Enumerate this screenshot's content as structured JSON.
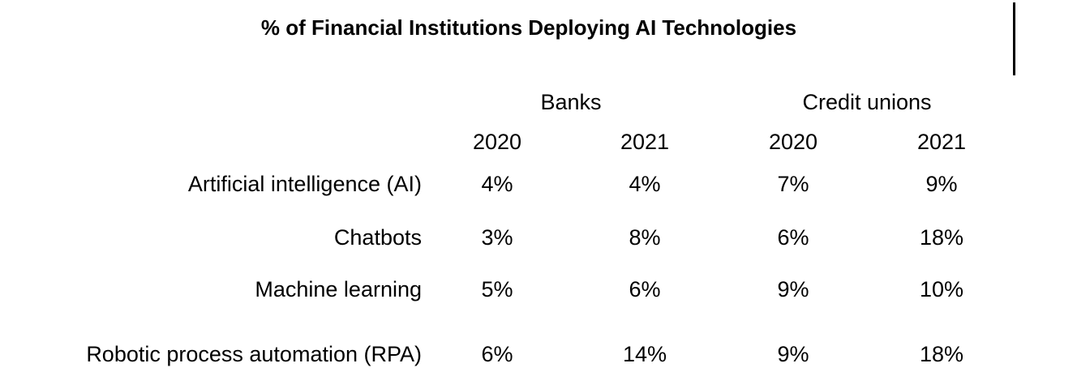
{
  "chart_data": {
    "type": "table",
    "title": "% of Financial Institutions Deploying AI Technologies",
    "groups": [
      {
        "name": "Banks",
        "years": [
          "2020",
          "2021"
        ]
      },
      {
        "name": "Credit unions",
        "years": [
          "2020",
          "2021"
        ]
      }
    ],
    "rows": [
      {
        "label": "Artificial intelligence (AI)",
        "values": [
          "4%",
          "4%",
          "7%",
          "9%"
        ]
      },
      {
        "label": "Chatbots",
        "values": [
          "3%",
          "8%",
          "6%",
          "18%"
        ]
      },
      {
        "label": "Machine learning",
        "values": [
          "5%",
          "6%",
          "9%",
          "10%"
        ]
      },
      {
        "label": "Robotic process automation (RPA)",
        "values": [
          "6%",
          "14%",
          "9%",
          "18%"
        ]
      }
    ]
  }
}
